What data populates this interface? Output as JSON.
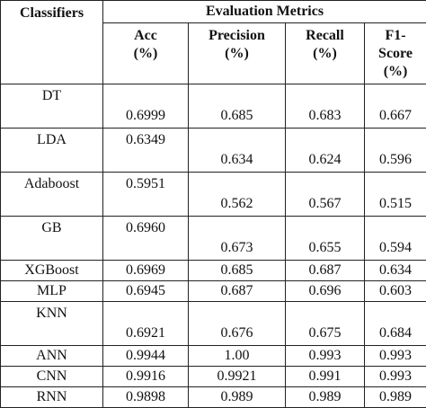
{
  "header": {
    "classifiers": "Classifiers",
    "group": "Evaluation Metrics",
    "metrics": [
      {
        "line1": "Acc",
        "line2": "(%)",
        "line3": ""
      },
      {
        "line1": "Precision",
        "line2": "(%)",
        "line3": ""
      },
      {
        "line1": "Recall",
        "line2": "(%)",
        "line3": ""
      },
      {
        "line1": "F1-",
        "line2": "Score",
        "line3": "(%)"
      }
    ]
  },
  "rows": [
    {
      "name": "DT",
      "acc": "0.6999",
      "precision": "0.685",
      "recall": "0.683",
      "f1": "0.667"
    },
    {
      "name": "LDA",
      "acc": "0.6349",
      "precision": "0.634",
      "recall": "0.624",
      "f1": "0.596"
    },
    {
      "name": "Adaboost",
      "acc": "0.5951",
      "precision": "0.562",
      "recall": "0.567",
      "f1": "0.515"
    },
    {
      "name": "GB",
      "acc": "0.6960",
      "precision": "0.673",
      "recall": "0.655",
      "f1": "0.594"
    },
    {
      "name": "XGBoost",
      "acc": "0.6969",
      "precision": "0.685",
      "recall": "0.687",
      "f1": "0.634"
    },
    {
      "name": "MLP",
      "acc": "0.6945",
      "precision": "0.687",
      "recall": "0.696",
      "f1": "0.603"
    },
    {
      "name": "KNN",
      "acc": "0.6921",
      "precision": "0.676",
      "recall": "0.675",
      "f1": "0.684"
    },
    {
      "name": "ANN",
      "acc": "0.9944",
      "precision": "1.00",
      "recall": "0.993",
      "f1": "0.993"
    },
    {
      "name": "CNN",
      "acc": "0.9916",
      "precision": "0.9921",
      "recall": "0.991",
      "f1": "0.993"
    },
    {
      "name": "RNN",
      "acc": "0.9898",
      "precision": "0.989",
      "recall": "0.989",
      "f1": "0.989"
    }
  ]
}
